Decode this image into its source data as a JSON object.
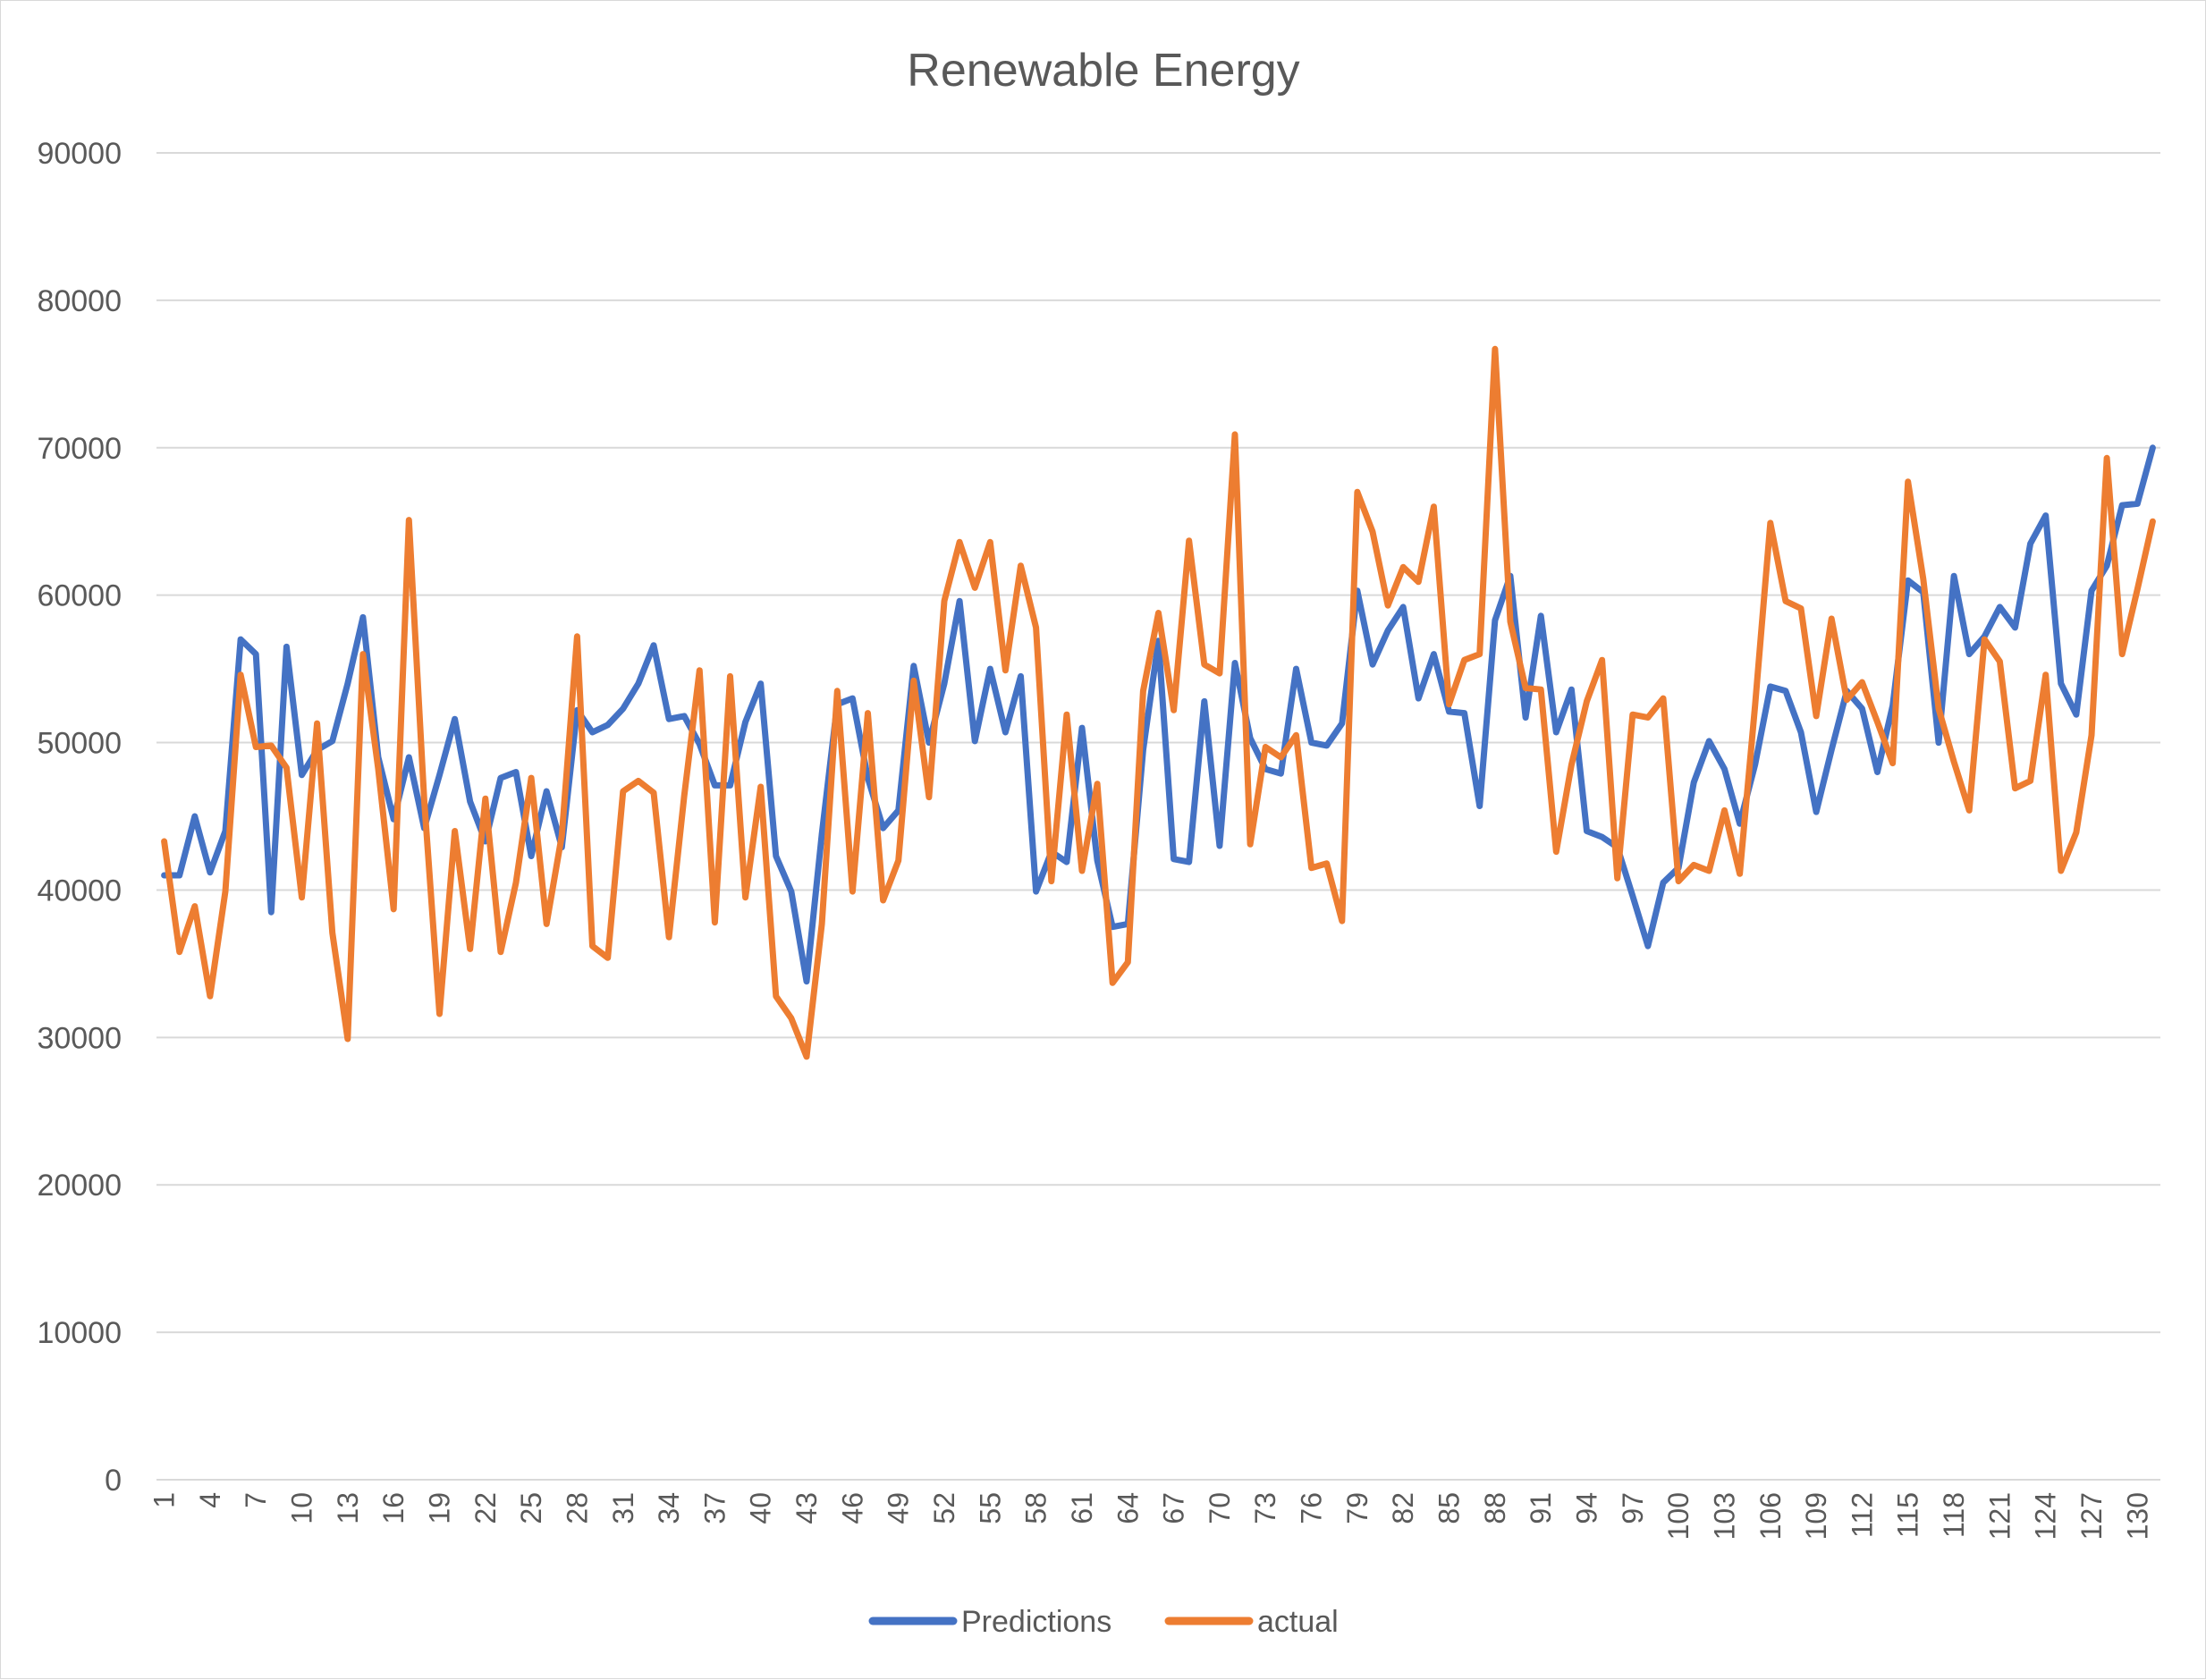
{
  "chart_data": {
    "type": "line",
    "title": "Renewable Energy",
    "xlabel": "",
    "ylabel": "",
    "ylim": [
      0,
      90000
    ],
    "y_ticks": [
      0,
      10000,
      20000,
      30000,
      40000,
      50000,
      60000,
      70000,
      80000,
      90000
    ],
    "x_tick_labels": [
      1,
      4,
      7,
      10,
      13,
      16,
      19,
      22,
      25,
      28,
      31,
      34,
      37,
      40,
      43,
      46,
      49,
      52,
      55,
      58,
      61,
      64,
      67,
      70,
      73,
      76,
      79,
      82,
      85,
      88,
      91,
      94,
      97,
      100,
      103,
      106,
      109,
      112,
      115,
      118,
      121,
      124,
      127,
      130
    ],
    "grid": "horizontal",
    "legend_position": "bottom",
    "x": [
      1,
      2,
      3,
      4,
      5,
      6,
      7,
      8,
      9,
      10,
      11,
      12,
      13,
      14,
      15,
      16,
      17,
      18,
      19,
      20,
      21,
      22,
      23,
      24,
      25,
      26,
      27,
      28,
      29,
      30,
      31,
      32,
      33,
      34,
      35,
      36,
      37,
      38,
      39,
      40,
      41,
      42,
      43,
      44,
      45,
      46,
      47,
      48,
      49,
      50,
      51,
      52,
      53,
      54,
      55,
      56,
      57,
      58,
      59,
      60,
      61,
      62,
      63,
      64,
      65,
      66,
      67,
      68,
      69,
      70,
      71,
      72,
      73,
      74,
      75,
      76,
      77,
      78,
      79,
      80,
      81,
      82,
      83,
      84,
      85,
      86,
      87,
      88,
      89,
      90,
      91,
      92,
      93,
      94,
      95,
      96,
      97,
      98,
      99,
      100,
      101,
      102,
      103,
      104,
      105,
      106,
      107,
      108,
      109,
      110,
      111,
      112,
      113,
      114,
      115,
      116,
      117,
      118,
      119,
      120,
      121,
      122,
      123,
      124,
      125,
      126,
      127,
      128,
      129,
      130,
      131
    ],
    "series": [
      {
        "name": "Predictions",
        "color": "#4472C4",
        "values": [
          41000,
          41000,
          45000,
          41200,
          44000,
          57000,
          56000,
          38500,
          56500,
          47800,
          49500,
          50100,
          54000,
          58500,
          49000,
          44800,
          49000,
          44200,
          47800,
          51600,
          46000,
          43300,
          47600,
          48000,
          42300,
          46700,
          42900,
          52200,
          50700,
          51200,
          52300,
          54000,
          56600,
          51600,
          51800,
          49900,
          47100,
          47100,
          51400,
          54000,
          42300,
          39900,
          33800,
          43800,
          52600,
          53000,
          47600,
          44200,
          45400,
          55200,
          50000,
          54000,
          59600,
          50100,
          55000,
          50700,
          54500,
          39900,
          42600,
          41900,
          51000,
          42000,
          37500,
          37700,
          49500,
          56900,
          42100,
          41900,
          52800,
          43000,
          55400,
          50300,
          48200,
          47900,
          55000,
          50000,
          49800,
          51300,
          60300,
          55300,
          57600,
          59200,
          53000,
          56000,
          52100,
          52000,
          45700,
          58300,
          61300,
          51700,
          58600,
          50700,
          53600,
          44000,
          43600,
          42900,
          39600,
          36200,
          40500,
          41500,
          47300,
          50100,
          48200,
          44500,
          48500,
          53800,
          53500,
          50700,
          45300,
          49500,
          53500,
          52300,
          48000,
          52500,
          61000,
          60200,
          50000,
          61300,
          56000,
          57200,
          59200,
          57800,
          63500,
          65400,
          54000,
          51900,
          60300,
          62000,
          66100,
          66200,
          70000
        ]
      },
      {
        "name": "actual",
        "color": "#ED7D31",
        "values": [
          43300,
          35800,
          38900,
          32800,
          39900,
          54600,
          49700,
          49800,
          48300,
          39500,
          51300,
          37100,
          29900,
          56000,
          48200,
          38700,
          65100,
          46100,
          31600,
          44000,
          36000,
          46200,
          35800,
          40500,
          47600,
          37700,
          43700,
          57200,
          36200,
          35400,
          46700,
          47400,
          46600,
          36800,
          46400,
          54900,
          37800,
          54500,
          39500,
          47000,
          32800,
          31300,
          28700,
          37700,
          53500,
          39900,
          52000,
          39300,
          42000,
          54200,
          46300,
          59600,
          63600,
          60500,
          63600,
          54900,
          62000,
          57800,
          40600,
          51900,
          41300,
          47200,
          33700,
          35100,
          53500,
          58800,
          52200,
          63700,
          55300,
          54700,
          70900,
          43100,
          49700,
          49000,
          50500,
          41500,
          41800,
          37900,
          67000,
          64300,
          59300,
          61900,
          60900,
          66000,
          52600,
          55600,
          56000,
          76700,
          58200,
          53700,
          53600,
          42600,
          48500,
          52800,
          55600,
          40800,
          51900,
          51700,
          53000,
          40600,
          41700,
          41300,
          45400,
          41100,
          52500,
          64900,
          59600,
          59100,
          51800,
          58400,
          52900,
          54100,
          51400,
          48600,
          67700,
          61100,
          52300,
          48700,
          45400,
          57000,
          55500,
          46900,
          47400,
          54600,
          41300,
          43900,
          50500,
          69300,
          56000,
          60400,
          65000
        ]
      }
    ]
  }
}
